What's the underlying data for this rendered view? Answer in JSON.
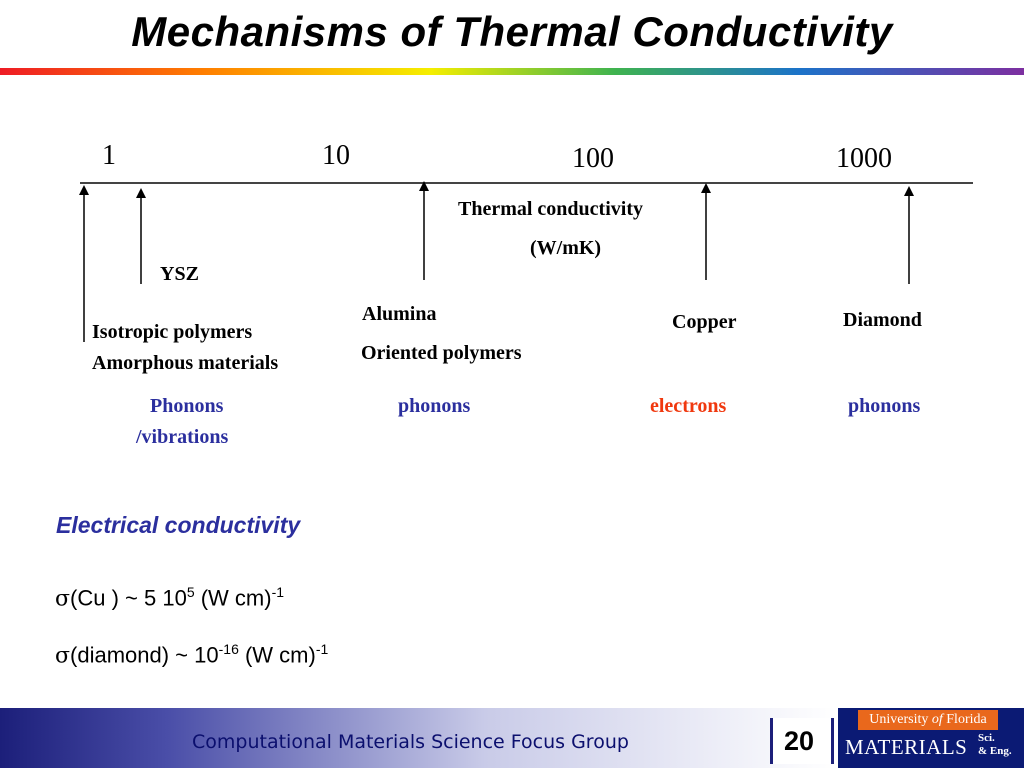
{
  "title": "Mechanisms of Thermal Conductivity",
  "scale": {
    "ticks": [
      "1",
      "10",
      "100",
      "1000"
    ],
    "axis_label_line1": "Thermal conductivity",
    "axis_label_line2": "(W/mK)"
  },
  "materials": {
    "ysz": "YSZ",
    "isotropic": "Isotropic polymers",
    "amorphous": "Amorphous materials",
    "alumina": "Alumina",
    "oriented": "Oriented polymers",
    "copper": "Copper",
    "diamond": "Diamond"
  },
  "mechanisms": {
    "phonons_vib_line1": "Phonons",
    "phonons_vib_line2": "/vibrations",
    "phonons_mid": "phonons",
    "electrons": "electrons",
    "phonons_right": "phonons"
  },
  "electrical": {
    "heading": "Electrical conductivity",
    "cu": {
      "sigma": "σ",
      "prefix": "(Cu ) ~ 5 10",
      "exp": "5",
      "mid": " (W cm)",
      "unit_exp": "-1"
    },
    "diamond": {
      "sigma": "σ",
      "prefix": "(diamond) ~ 10",
      "exp": "-16",
      "mid": " (W cm)",
      "unit_exp": "-1"
    }
  },
  "footer": {
    "group": "Computational Materials Science Focus Group",
    "page_number": "20",
    "university": "University of Florida",
    "university_pre": "University ",
    "university_of": "of",
    "university_post": " Florida",
    "department": "MATERIALS",
    "sci_line1": "Sci.",
    "sci_line2": "& Eng."
  },
  "colors": {
    "mechanism_blue": "#2b2f9e",
    "electrons_red": "#f0380e",
    "footer_navy": "#0b1a74",
    "uf_orange": "#e9681c"
  }
}
